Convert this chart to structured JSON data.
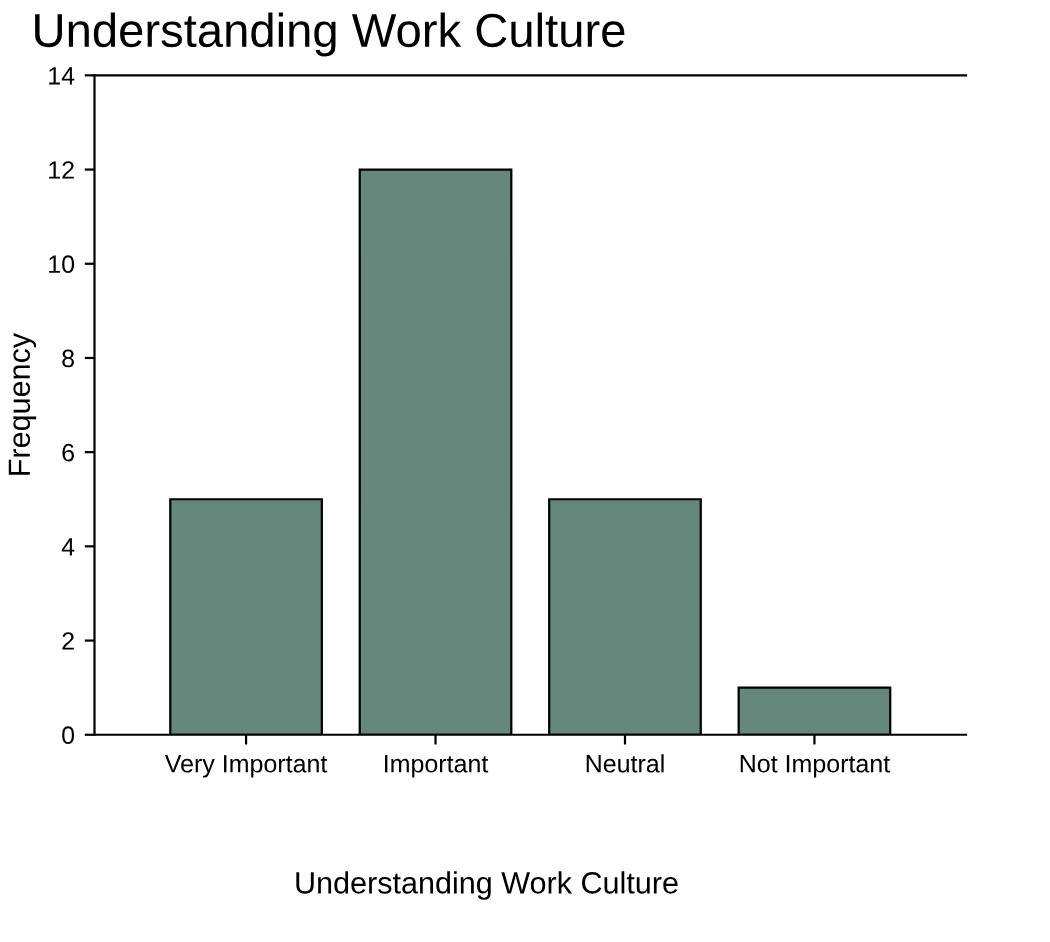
{
  "chart_data": {
    "type": "bar",
    "title": "Understanding Work Culture",
    "xlabel": "Understanding Work Culture",
    "ylabel": "Frequency",
    "categories": [
      "Very Important",
      "Important",
      "Neutral",
      "Not Important"
    ],
    "values": [
      5,
      12,
      5,
      1
    ],
    "color": "#65877c",
    "ylim": [
      0,
      14
    ],
    "yticks": [
      0,
      2,
      4,
      6,
      8,
      10,
      12,
      14
    ],
    "grid": false,
    "legend": false
  }
}
